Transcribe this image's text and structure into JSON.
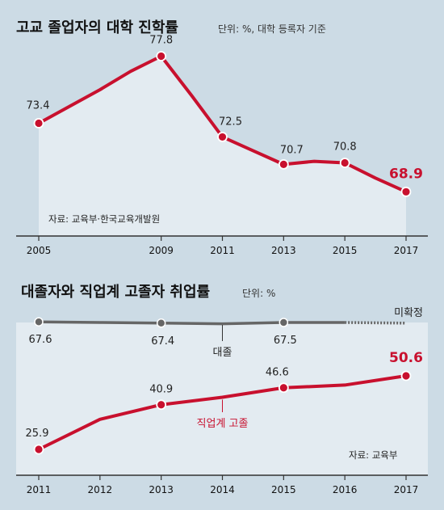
{
  "chart_data": [
    {
      "type": "area",
      "title": "고교 졸업자의 대학 진학률",
      "unit": "단위: %, 대학 등록자 기준",
      "source": "자료: 교육부·한국교육개발원",
      "x": [
        2005,
        2006,
        2007,
        2008,
        2009,
        2010,
        2011,
        2012,
        2013,
        2014,
        2015,
        2016,
        2017
      ],
      "tick_labels": [
        "2005",
        "2009",
        "2011",
        "2013",
        "2015",
        "2017"
      ],
      "series": [
        {
          "values": [
            73.4,
            75.6,
            76.8,
            77.8,
            75.2,
            72.5,
            71.6,
            70.7,
            70.9,
            70.8,
            69.8,
            68.9
          ],
          "x": [
            2005,
            2007,
            2008,
            2009,
            2010,
            2011,
            2012,
            2013,
            2014,
            2015,
            2016,
            2017
          ],
          "color": "#c8102e"
        }
      ],
      "labels": [
        {
          "x": 2005,
          "y": 73.4,
          "text": "73.4"
        },
        {
          "x": 2009,
          "y": 77.8,
          "text": "77.8"
        },
        {
          "x": 2011,
          "y": 72.5,
          "text": "72.5"
        },
        {
          "x": 2013,
          "y": 70.7,
          "text": "70.7"
        },
        {
          "x": 2015,
          "y": 70.8,
          "text": "70.8"
        },
        {
          "x": 2017,
          "y": 68.9,
          "text": "68.9",
          "highlight": true
        }
      ],
      "markers_x": [
        2005,
        2009,
        2011,
        2013,
        2015,
        2017
      ],
      "ylim": [
        66,
        80
      ]
    },
    {
      "type": "line",
      "title": "대졸자와 직업계 고졸자 취업률",
      "unit": "단위: %",
      "source": "자료: 교육부",
      "x": [
        2011,
        2012,
        2013,
        2014,
        2015,
        2016,
        2017
      ],
      "tick_labels": [
        "2011",
        "2012",
        "2013",
        "2014",
        "2015",
        "2016",
        "2017"
      ],
      "series": [
        {
          "name": "대졸",
          "color": "#666666",
          "x": [
            2011,
            2012,
            2013,
            2014,
            2015,
            2016
          ],
          "values": [
            67.6,
            67.5,
            67.4,
            67.3,
            67.5,
            67.5
          ],
          "labels": [
            {
              "x": 2011,
              "text": "67.6"
            },
            {
              "x": 2013,
              "text": "67.4"
            },
            {
              "x": 2015,
              "text": "67.5"
            }
          ],
          "markers_x": [
            2011,
            2013,
            2015
          ],
          "dashed_to": {
            "x": 2017,
            "value": 67.4,
            "text": "미확정"
          }
        },
        {
          "name": "직업계 고졸",
          "color": "#c8102e",
          "x": [
            2011,
            2012,
            2013,
            2014,
            2015,
            2016,
            2017
          ],
          "values": [
            25.9,
            36.0,
            40.9,
            43.4,
            46.6,
            47.5,
            50.6
          ],
          "labels": [
            {
              "x": 2011,
              "text": "25.9"
            },
            {
              "x": 2013,
              "text": "40.9"
            },
            {
              "x": 2015,
              "text": "46.6"
            },
            {
              "x": 2017,
              "text": "50.6",
              "highlight": true
            }
          ],
          "markers_x": [
            2011,
            2013,
            2015,
            2017
          ]
        }
      ]
    }
  ]
}
